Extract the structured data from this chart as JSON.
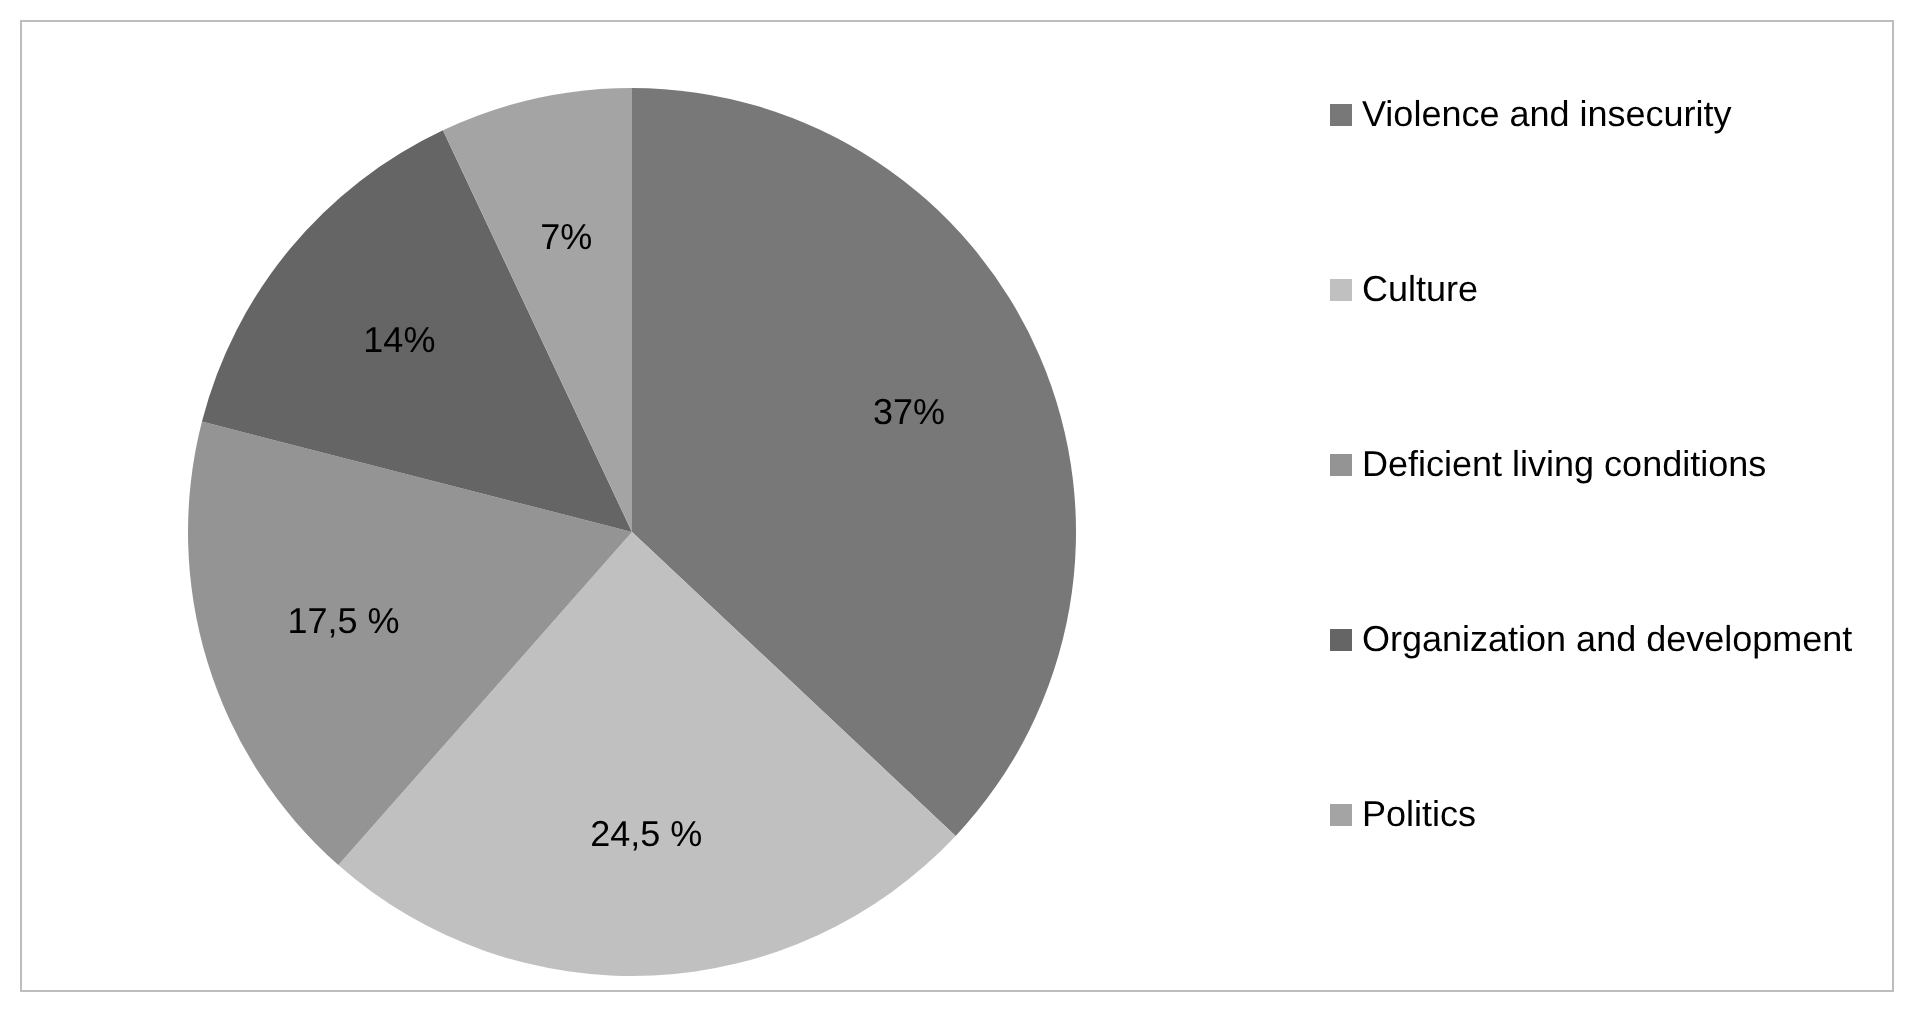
{
  "chart_data": {
    "type": "pie",
    "categories": [
      "Violence and insecurity",
      "Culture",
      "Deficient living conditions",
      "Organization and development",
      "Politics"
    ],
    "values": [
      37,
      24.5,
      17.5,
      14,
      7
    ],
    "colors": [
      "#787878",
      "#c0c0c0",
      "#949494",
      "#656565",
      "#a4a4a4"
    ],
    "value_labels": [
      "37%",
      "24,5 %",
      "17,5 %",
      "14%",
      "7%"
    ],
    "legend": "right"
  }
}
